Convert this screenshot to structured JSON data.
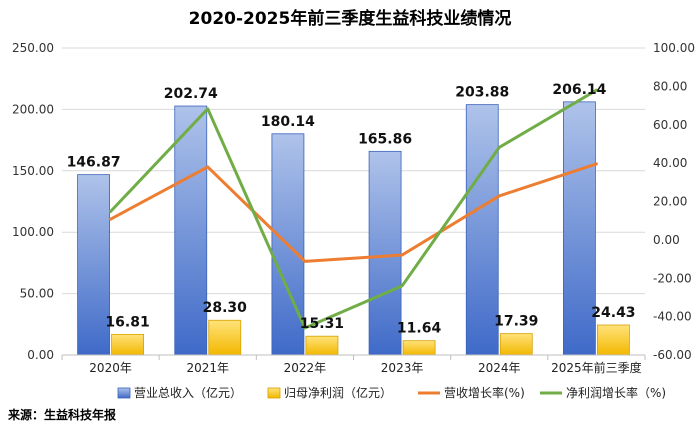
{
  "chart_data": {
    "type": "bar",
    "title": "2020-2025年前三季度生益科技业绩情况",
    "categories": [
      "2020年",
      "2021年",
      "2022年",
      "2023年",
      "2024年",
      "2025年前三季度"
    ],
    "series": [
      {
        "name": "营业总收入（亿元）",
        "type": "bar",
        "axis": "left",
        "color": "#4472C4",
        "values": [
          146.87,
          202.74,
          180.14,
          165.86,
          203.88,
          206.14
        ]
      },
      {
        "name": "归母净利润（亿元）",
        "type": "bar",
        "axis": "left",
        "color": "#FFC000",
        "values": [
          16.81,
          28.3,
          15.31,
          11.64,
          17.39,
          24.43
        ]
      },
      {
        "name": "营收增长率(%)",
        "type": "line",
        "axis": "right",
        "color": "#ED7D31",
        "values": [
          10.8,
          38.0,
          -11.2,
          -7.9,
          22.9,
          39.6
        ]
      },
      {
        "name": "净利润增长率（%)",
        "type": "line",
        "axis": "right",
        "color": "#70AD47",
        "values": [
          14.8,
          68.3,
          -45.9,
          -24.0,
          48.2,
          78.0
        ]
      }
    ],
    "data_labels": {
      "revenue": [
        "146.87",
        "202.74",
        "180.14",
        "165.86",
        "203.88",
        "206.14"
      ],
      "profit": [
        "16.81",
        "28.30",
        "15.31",
        "11.64",
        "17.39",
        "24.43"
      ]
    },
    "y_left": {
      "range": [
        0,
        250
      ],
      "ticks": [
        "0.00",
        "50.00",
        "100.00",
        "150.00",
        "200.00",
        "250.00"
      ]
    },
    "y_right": {
      "range": [
        -60,
        100
      ],
      "ticks": [
        "-60.00",
        "-40.00",
        "-20.00",
        "0.00",
        "20.00",
        "40.00",
        "60.00",
        "80.00",
        "100.00"
      ]
    },
    "grid": true,
    "legend_position": "bottom",
    "source": "来源：生益科技年报"
  }
}
